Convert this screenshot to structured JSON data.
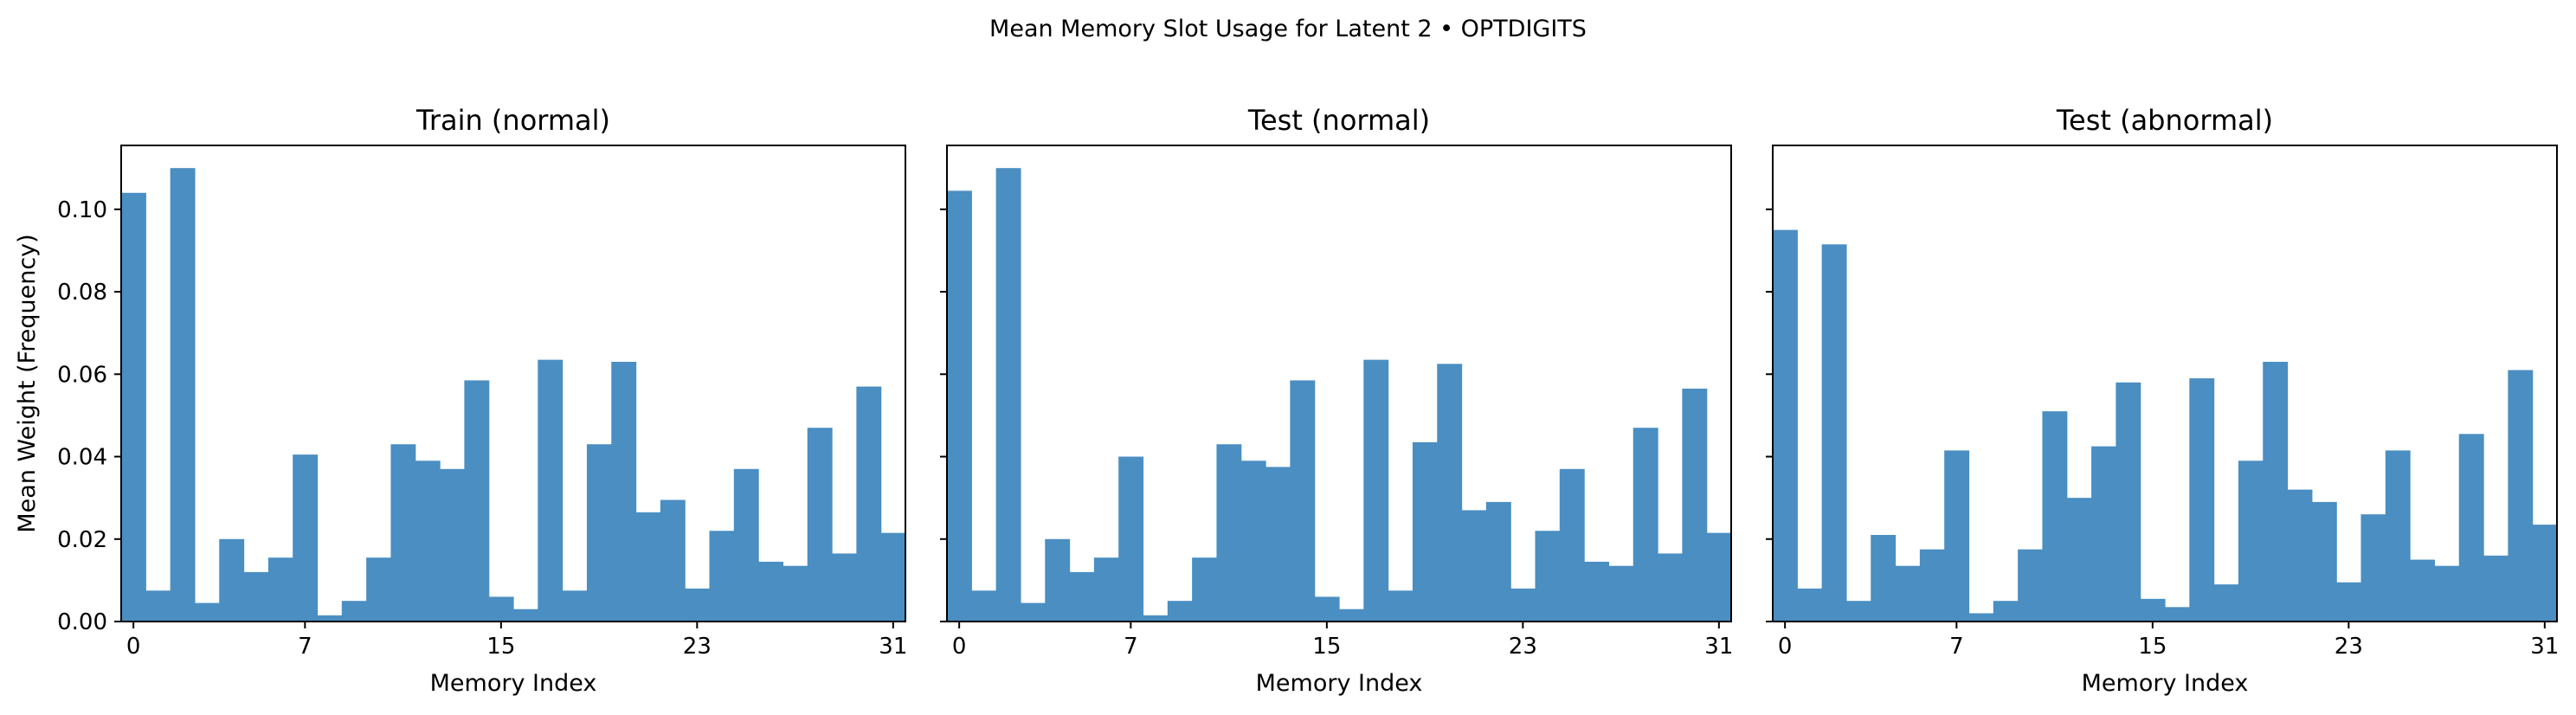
{
  "figure": {
    "suptitle": "Mean Memory Slot Usage for Latent 2 • OPTDIGITS",
    "bar_color": "#4a8ec2"
  },
  "chart_data": [
    {
      "type": "bar",
      "title": "Train (normal)",
      "xlabel": "Memory Index",
      "ylabel": "Mean Weight (Frequency)",
      "xticks": [
        0,
        7,
        15,
        23,
        31
      ],
      "yticks": [
        "0.00",
        "0.02",
        "0.04",
        "0.06",
        "0.08",
        "0.10"
      ],
      "ylim": [
        0,
        0.1155
      ],
      "categories": [
        0,
        1,
        2,
        3,
        4,
        5,
        6,
        7,
        8,
        9,
        10,
        11,
        12,
        13,
        14,
        15,
        16,
        17,
        18,
        19,
        20,
        21,
        22,
        23,
        24,
        25,
        26,
        27,
        28,
        29,
        30,
        31
      ],
      "values": [
        0.104,
        0.0075,
        0.11,
        0.0045,
        0.02,
        0.012,
        0.0155,
        0.0405,
        0.0015,
        0.005,
        0.0155,
        0.043,
        0.039,
        0.037,
        0.0585,
        0.006,
        0.003,
        0.0635,
        0.0075,
        0.043,
        0.063,
        0.0265,
        0.0295,
        0.008,
        0.022,
        0.037,
        0.0145,
        0.0135,
        0.047,
        0.0165,
        0.057,
        0.0215
      ]
    },
    {
      "type": "bar",
      "title": "Test (normal)",
      "xlabel": "Memory Index",
      "ylabel": "",
      "xticks": [
        0,
        7,
        15,
        23,
        31
      ],
      "yticks": [],
      "ylim": [
        0,
        0.1155
      ],
      "categories": [
        0,
        1,
        2,
        3,
        4,
        5,
        6,
        7,
        8,
        9,
        10,
        11,
        12,
        13,
        14,
        15,
        16,
        17,
        18,
        19,
        20,
        21,
        22,
        23,
        24,
        25,
        26,
        27,
        28,
        29,
        30,
        31
      ],
      "values": [
        0.1045,
        0.0075,
        0.11,
        0.0045,
        0.02,
        0.012,
        0.0155,
        0.04,
        0.0015,
        0.005,
        0.0155,
        0.043,
        0.039,
        0.0375,
        0.0585,
        0.006,
        0.003,
        0.0635,
        0.0075,
        0.0435,
        0.0625,
        0.027,
        0.029,
        0.008,
        0.022,
        0.037,
        0.0145,
        0.0135,
        0.047,
        0.0165,
        0.0565,
        0.0215
      ]
    },
    {
      "type": "bar",
      "title": "Test (abnormal)",
      "xlabel": "Memory Index",
      "ylabel": "",
      "xticks": [
        0,
        7,
        15,
        23,
        31
      ],
      "yticks": [],
      "ylim": [
        0,
        0.1155
      ],
      "categories": [
        0,
        1,
        2,
        3,
        4,
        5,
        6,
        7,
        8,
        9,
        10,
        11,
        12,
        13,
        14,
        15,
        16,
        17,
        18,
        19,
        20,
        21,
        22,
        23,
        24,
        25,
        26,
        27,
        28,
        29,
        30,
        31
      ],
      "values": [
        0.095,
        0.008,
        0.0915,
        0.005,
        0.021,
        0.0135,
        0.0175,
        0.0415,
        0.002,
        0.005,
        0.0175,
        0.051,
        0.03,
        0.0425,
        0.058,
        0.0055,
        0.0035,
        0.059,
        0.009,
        0.039,
        0.063,
        0.032,
        0.029,
        0.0095,
        0.026,
        0.0415,
        0.015,
        0.0135,
        0.0455,
        0.016,
        0.061,
        0.0235
      ]
    }
  ]
}
